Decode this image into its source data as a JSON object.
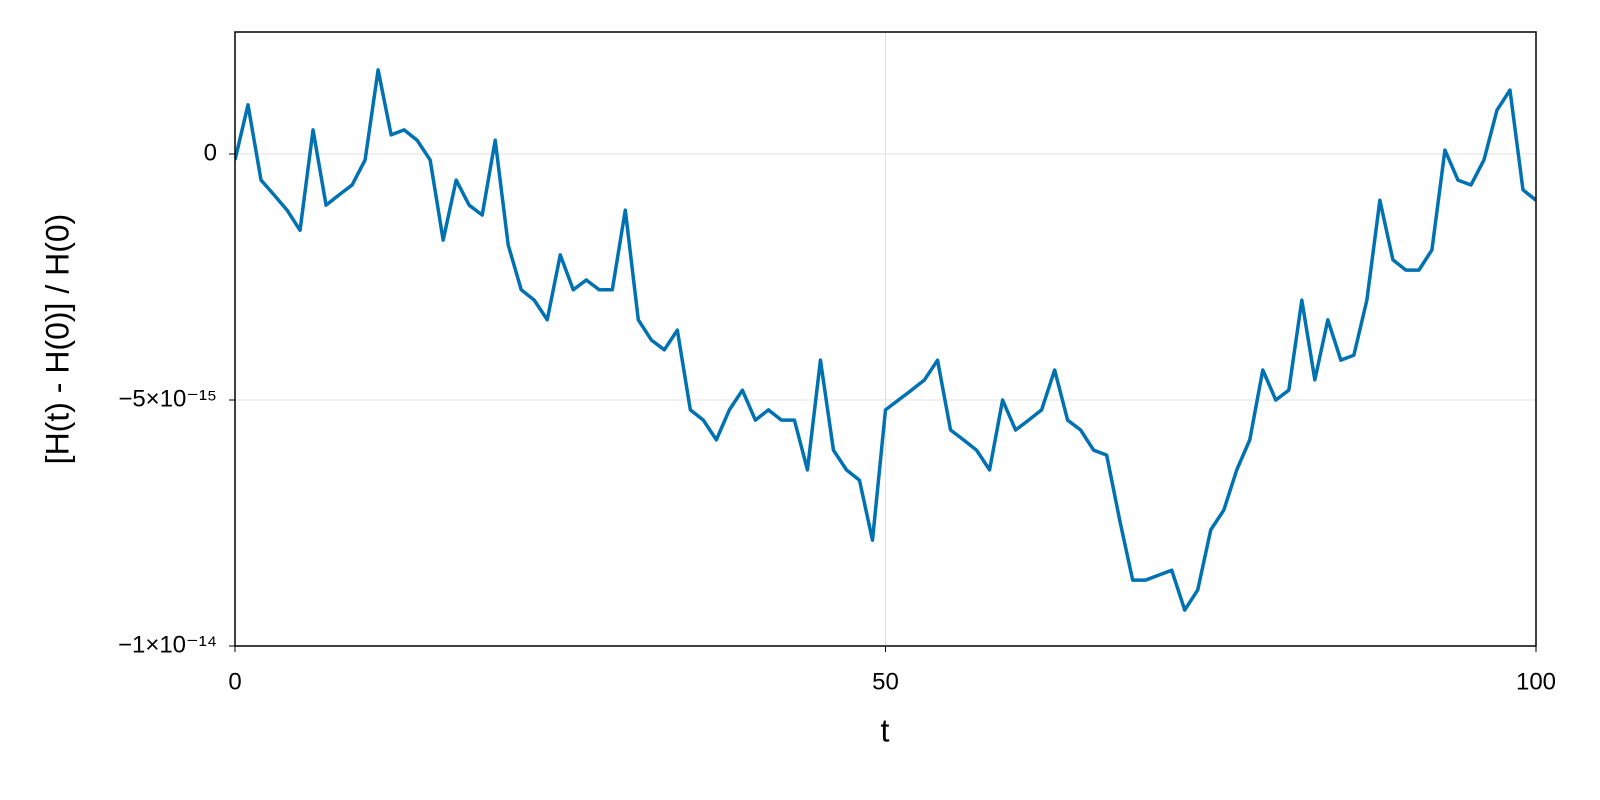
{
  "chart_data": {
    "type": "line",
    "x_label": "t",
    "y_label": "[H(t) - H(0)] / H(0)",
    "xlim": [
      0,
      100
    ],
    "xticks": [
      0,
      50,
      100
    ],
    "ylim": [
      -1e-14,
      2.48e-15
    ],
    "yticks": [
      {
        "value": 0,
        "label": "0"
      },
      {
        "value": -5e-15,
        "label": "−5×10⁻¹⁵"
      },
      {
        "value": -1e-14,
        "label": "−1×10⁻¹⁴"
      }
    ],
    "grid": true,
    "x": [
      0,
      1,
      2,
      3,
      4,
      5,
      6,
      7,
      8,
      9,
      10,
      11,
      12,
      13,
      14,
      15,
      16,
      17,
      18,
      19,
      20,
      21,
      22,
      23,
      24,
      25,
      26,
      27,
      28,
      29,
      30,
      31,
      32,
      33,
      34,
      35,
      36,
      37,
      38,
      39,
      40,
      41,
      42,
      43,
      44,
      45,
      46,
      47,
      48,
      49,
      50,
      51,
      52,
      53,
      54,
      55,
      56,
      57,
      58,
      59,
      60,
      61,
      62,
      63,
      64,
      65,
      66,
      67,
      68,
      69,
      70,
      71,
      72,
      73,
      74,
      75,
      76,
      77,
      78,
      79,
      80,
      81,
      82,
      83,
      84,
      85,
      86,
      87,
      88,
      89,
      90,
      91,
      92,
      93,
      94,
      95,
      96,
      97,
      98,
      99,
      100
    ],
    "series": [
      {
        "color": "#0072b2",
        "values": [
          -1.2e-16,
          1e-15,
          -5.3e-16,
          -8.3e-16,
          -1.14e-15,
          -1.55e-15,
          4.9e-16,
          -1.04e-15,
          -8.3e-16,
          -6.3e-16,
          -1.2e-16,
          1.71e-15,
          3.9e-16,
          4.9e-16,
          2.8e-16,
          -1.2e-16,
          -1.75e-15,
          -5.3e-16,
          -1.04e-15,
          -1.24e-15,
          2.8e-16,
          -1.85e-15,
          -2.76e-15,
          -2.97e-15,
          -3.37e-15,
          -2.05e-15,
          -2.76e-15,
          -2.56e-15,
          -2.76e-15,
          -2.76e-15,
          -1.14e-15,
          -3.37e-15,
          -3.78e-15,
          -3.98e-15,
          -3.58e-15,
          -5.2e-15,
          -5.41e-15,
          -5.81e-15,
          -5.2e-15,
          -4.8e-15,
          -5.41e-15,
          -5.2e-15,
          -5.41e-15,
          -5.41e-15,
          -6.42e-15,
          -4.19e-15,
          -6.02e-15,
          -6.42e-15,
          -6.63e-15,
          -7.85e-15,
          -5.2e-15,
          -5e-15,
          -4.8e-15,
          -4.59e-15,
          -4.19e-15,
          -5.61e-15,
          -5.81e-15,
          -6.02e-15,
          -6.42e-15,
          -5e-15,
          -5.61e-15,
          -5.41e-15,
          -5.2e-15,
          -4.39e-15,
          -5.41e-15,
          -5.61e-15,
          -6.02e-15,
          -6.12e-15,
          -7.44e-15,
          -8.66e-15,
          -8.66e-15,
          -8.56e-15,
          -8.46e-15,
          -9.27e-15,
          -8.86e-15,
          -7.64e-15,
          -7.24e-15,
          -6.42e-15,
          -5.81e-15,
          -4.39e-15,
          -5e-15,
          -4.8e-15,
          -2.97e-15,
          -4.59e-15,
          -3.37e-15,
          -4.19e-15,
          -4.09e-15,
          -2.97e-15,
          -9.4e-16,
          -2.15e-15,
          -2.36e-15,
          -2.36e-15,
          -1.95e-15,
          8e-17,
          -5.3e-16,
          -6.3e-16,
          -1.2e-16,
          8.9e-16,
          1.3e-15,
          -7.3e-16,
          -9.4e-16
        ]
      }
    ]
  }
}
